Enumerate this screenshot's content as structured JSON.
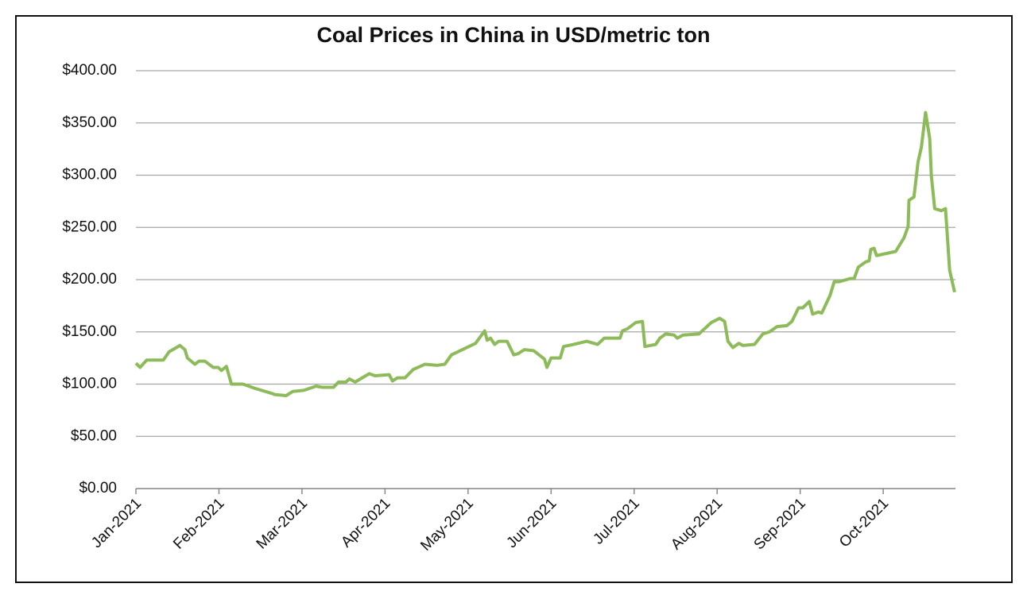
{
  "chart_data": {
    "type": "line",
    "title": "Coal Prices in China in USD/metric ton",
    "x": [
      0,
      0.05,
      0.13,
      0.28,
      0.33,
      0.4,
      0.53,
      0.59,
      0.62,
      0.71,
      0.76,
      0.83,
      0.93,
      0.99,
      1.03,
      1.09,
      1.15,
      1.29,
      1.43,
      1.64,
      1.67,
      1.81,
      1.89,
      2.02,
      2.17,
      2.24,
      2.38,
      2.44,
      2.53,
      2.57,
      2.64,
      2.81,
      2.88,
      3.05,
      3.09,
      3.15,
      3.24,
      3.34,
      3.48,
      3.63,
      3.72,
      3.8,
      4.01,
      4.09,
      4.2,
      4.23,
      4.27,
      4.32,
      4.37,
      4.47,
      4.55,
      4.6,
      4.68,
      4.79,
      4.92,
      4.95,
      5.0,
      5.11,
      5.15,
      5.27,
      5.43,
      5.56,
      5.64,
      5.78,
      5.83,
      5.86,
      5.92,
      6.02,
      6.1,
      6.13,
      6.26,
      6.31,
      6.38,
      6.48,
      6.52,
      6.59,
      6.78,
      6.93,
      7.03,
      7.09,
      7.13,
      7.19,
      7.26,
      7.31,
      7.45,
      7.55,
      7.63,
      7.72,
      7.84,
      7.9,
      7.98,
      8.03,
      8.11,
      8.15,
      8.22,
      8.26,
      8.36,
      8.41,
      8.47,
      8.6,
      8.65,
      8.7,
      8.79,
      8.83,
      8.85,
      8.89,
      8.92,
      9.15,
      9.25,
      9.3,
      9.31,
      9.37,
      9.42,
      9.46,
      9.51,
      9.56,
      9.58,
      9.62,
      9.7,
      9.75,
      9.8,
      9.86
    ],
    "values": [
      120,
      116,
      123,
      123,
      123,
      131,
      137,
      133,
      125,
      119,
      122,
      122,
      116,
      116,
      113,
      117,
      100,
      100,
      96,
      91,
      90,
      89,
      93,
      94,
      98,
      97,
      97,
      102,
      102,
      105,
      102,
      110,
      108,
      109,
      103,
      106,
      106,
      114,
      119,
      118,
      119,
      128,
      136,
      139,
      151,
      142,
      144,
      138,
      141,
      141,
      128,
      129,
      133,
      132,
      124,
      116,
      125,
      125,
      136,
      138,
      141,
      138,
      144,
      144,
      144,
      151,
      153,
      159,
      160,
      136,
      138,
      144,
      148,
      147,
      144,
      147,
      148,
      159,
      163,
      160,
      141,
      135,
      139,
      137,
      138,
      148,
      150,
      155,
      156,
      160,
      173,
      173,
      179,
      167,
      169,
      168,
      185,
      198,
      198,
      201,
      201,
      212,
      217,
      218,
      229,
      230,
      223,
      227,
      240,
      251,
      276,
      279,
      313,
      327,
      360,
      335,
      299,
      268,
      266,
      268,
      209,
      188
    ],
    "color": "#8dbb5a",
    "xlim": [
      0,
      9.87
    ],
    "xticks": [
      {
        "value": 0,
        "label": "Jan-2021"
      },
      {
        "value": 1,
        "label": "Feb-2021"
      },
      {
        "value": 2,
        "label": "Mar-2021"
      },
      {
        "value": 3,
        "label": "Apr-2021"
      },
      {
        "value": 4,
        "label": "May-2021"
      },
      {
        "value": 5,
        "label": "Jun-2021"
      },
      {
        "value": 6,
        "label": "Jul-2021"
      },
      {
        "value": 7,
        "label": "Aug-2021"
      },
      {
        "value": 8,
        "label": "Sep-2021"
      },
      {
        "value": 9,
        "label": "Oct-2021"
      }
    ],
    "ylim": [
      0,
      400
    ],
    "yticks": [
      {
        "value": 0,
        "label": "$0.00"
      },
      {
        "value": 50,
        "label": "$50.00"
      },
      {
        "value": 100,
        "label": "$100.00"
      },
      {
        "value": 150,
        "label": "$150.00"
      },
      {
        "value": 200,
        "label": "$200.00"
      },
      {
        "value": 250,
        "label": "$250.00"
      },
      {
        "value": 300,
        "label": "$300.00"
      },
      {
        "value": 350,
        "label": "$350.00"
      },
      {
        "value": 400,
        "label": "$400.00"
      }
    ],
    "grid": true
  }
}
